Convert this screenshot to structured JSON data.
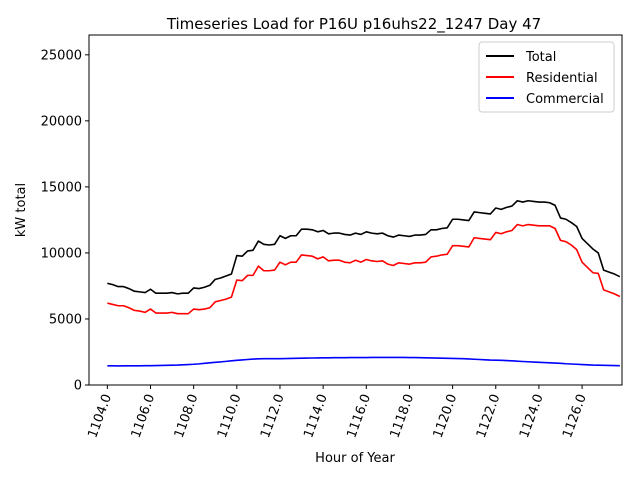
{
  "chart_data": {
    "type": "line",
    "title": "Timeseries Load for P16U p16uhs22_1247  Day 47",
    "xlabel": "Hour of Year",
    "ylabel": "kW total",
    "xlim": [
      1103.15,
      1127.85
    ],
    "ylim": [
      0,
      26500
    ],
    "x_ticks": [
      1104,
      1106,
      1108,
      1110,
      1112,
      1114,
      1116,
      1118,
      1120,
      1122,
      1124,
      1126
    ],
    "x_tick_labels": [
      "1104.0",
      "1106.0",
      "1108.0",
      "1110.0",
      "1112.0",
      "1114.0",
      "1116.0",
      "1118.0",
      "1120.0",
      "1122.0",
      "1124.0",
      "1126.0"
    ],
    "y_ticks": [
      0,
      5000,
      10000,
      15000,
      20000,
      25000
    ],
    "y_tick_labels": [
      "0",
      "5000",
      "10000",
      "15000",
      "20000",
      "25000"
    ],
    "legend_position": "top-right",
    "x_start": 1104.0,
    "x_step": 0.25,
    "series": [
      {
        "name": "Total",
        "color": "#000000",
        "values": [
          7700,
          7600,
          7450,
          7450,
          7300,
          7100,
          7050,
          7000,
          7250,
          6950,
          6950,
          6950,
          7000,
          6900,
          6950,
          6950,
          7350,
          7300,
          7400,
          7550,
          8000,
          8100,
          8250,
          8400,
          9800,
          9750,
          10150,
          10200,
          10900,
          10650,
          10600,
          10650,
          11300,
          11100,
          11300,
          11300,
          11800,
          11800,
          11750,
          11600,
          11700,
          11450,
          11500,
          11500,
          11400,
          11350,
          11500,
          11400,
          11600,
          11500,
          11450,
          11500,
          11300,
          11200,
          11350,
          11300,
          11250,
          11350,
          11350,
          11400,
          11750,
          11750,
          11850,
          11900,
          12550,
          12550,
          12500,
          12450,
          13100,
          13050,
          13000,
          12950,
          13400,
          13300,
          13450,
          13550,
          13950,
          13850,
          13950,
          13900,
          13850,
          13850,
          13800,
          13600,
          12650,
          12550,
          12300,
          12000,
          11100,
          10700,
          10300,
          10000,
          8700,
          8550,
          8400,
          8200
        ]
      },
      {
        "name": "Residential",
        "color": "#ff0000",
        "values": [
          6200,
          6100,
          6000,
          6000,
          5850,
          5650,
          5600,
          5500,
          5750,
          5450,
          5450,
          5450,
          5500,
          5400,
          5400,
          5400,
          5750,
          5700,
          5750,
          5850,
          6300,
          6400,
          6500,
          6650,
          7950,
          7900,
          8300,
          8300,
          9000,
          8650,
          8650,
          8700,
          9300,
          9100,
          9300,
          9300,
          9850,
          9800,
          9750,
          9550,
          9700,
          9400,
          9450,
          9450,
          9300,
          9250,
          9450,
          9300,
          9500,
          9400,
          9350,
          9400,
          9150,
          9050,
          9250,
          9200,
          9150,
          9250,
          9250,
          9300,
          9700,
          9750,
          9850,
          9900,
          10550,
          10550,
          10500,
          10450,
          11150,
          11100,
          11050,
          11000,
          11550,
          11450,
          11600,
          11700,
          12150,
          12050,
          12150,
          12100,
          12050,
          12050,
          12050,
          11850,
          10950,
          10850,
          10600,
          10250,
          9300,
          8900,
          8500,
          8450,
          7200,
          7050,
          6900,
          6700
        ]
      },
      {
        "name": "Commercial",
        "color": "#0000ff",
        "values": [
          1450,
          1450,
          1440,
          1450,
          1450,
          1450,
          1450,
          1460,
          1460,
          1470,
          1480,
          1490,
          1500,
          1510,
          1530,
          1550,
          1570,
          1600,
          1640,
          1680,
          1720,
          1750,
          1790,
          1830,
          1870,
          1900,
          1930,
          1960,
          1980,
          1990,
          1990,
          1990,
          1990,
          2000,
          2010,
          2020,
          2030,
          2040,
          2045,
          2050,
          2055,
          2060,
          2065,
          2070,
          2070,
          2075,
          2080,
          2080,
          2080,
          2085,
          2085,
          2085,
          2085,
          2085,
          2085,
          2085,
          2080,
          2080,
          2070,
          2060,
          2050,
          2040,
          2030,
          2020,
          2010,
          2000,
          1990,
          1970,
          1950,
          1930,
          1910,
          1890,
          1880,
          1870,
          1850,
          1830,
          1800,
          1780,
          1760,
          1740,
          1720,
          1700,
          1680,
          1660,
          1640,
          1610,
          1590,
          1570,
          1550,
          1530,
          1510,
          1500,
          1490,
          1480,
          1470,
          1460
        ]
      }
    ]
  }
}
